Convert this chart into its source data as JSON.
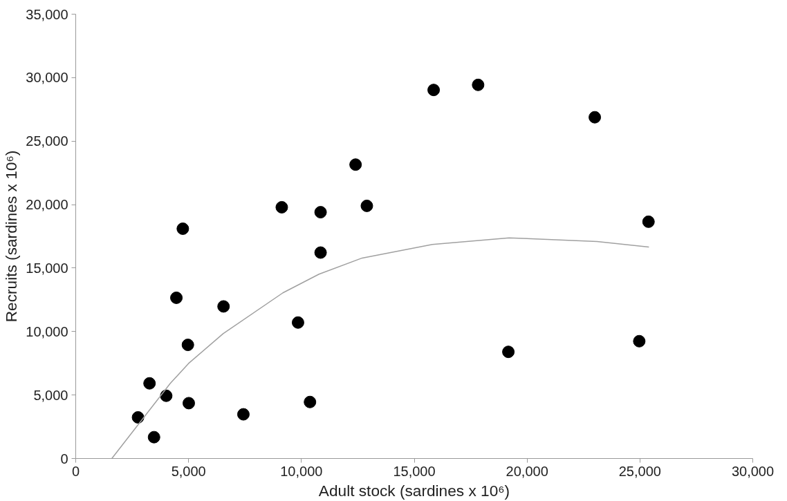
{
  "chart_data": {
    "type": "scatter",
    "xlabel": "Adult stock (sardines x 10⁶)",
    "ylabel": "Recruits (sardines x 10⁶)",
    "xlim": [
      0,
      30000
    ],
    "ylim": [
      0,
      35000
    ],
    "xticks": [
      0,
      {
        "value": 5000,
        "label": "5,000"
      },
      {
        "value": 10000,
        "label": "10,000"
      },
      {
        "value": 15000,
        "label": "15,000"
      },
      {
        "value": 20000,
        "label": "20,000"
      },
      {
        "value": 25000,
        "label": "25,000"
      },
      {
        "value": 30000,
        "label": "30,000"
      }
    ],
    "yticks": [
      0,
      {
        "value": 5000,
        "label": "5,000"
      },
      {
        "value": 10000,
        "label": "10,000"
      },
      {
        "value": 15000,
        "label": "15,000"
      },
      {
        "value": 20000,
        "label": "20,000"
      },
      {
        "value": 25000,
        "label": "25,000"
      },
      {
        "value": 30000,
        "label": "30,000"
      },
      {
        "value": 35000,
        "label": "35,000"
      }
    ],
    "grid": false,
    "series": [
      {
        "marker": "circle",
        "color": "#000000",
        "x": [
          2760,
          3270,
          3470,
          4010,
          4460,
          4745,
          4970,
          5010,
          6550,
          7430,
          9130,
          9850,
          10380,
          10850,
          10850,
          12400,
          12900,
          15860,
          17830,
          19170,
          23000,
          24970,
          25380
        ],
        "values": [
          3240,
          5920,
          1680,
          4940,
          12660,
          18100,
          8950,
          4360,
          11980,
          3480,
          19790,
          10710,
          4450,
          19400,
          16220,
          23150,
          19900,
          29030,
          29430,
          8400,
          26880,
          9240,
          18650
        ]
      },
      {
        "type": "line",
        "marker": "none",
        "line_style": "solid",
        "color": "#a0a0a0",
        "x": [
          1600,
          4190,
          5000,
          6530,
          9180,
          10780,
          12690,
          15800,
          19200,
          23100,
          25400
        ],
        "values": [
          0,
          5920,
          7490,
          9830,
          13050,
          14520,
          15790,
          16860,
          17380,
          17090,
          16660
        ]
      }
    ]
  }
}
